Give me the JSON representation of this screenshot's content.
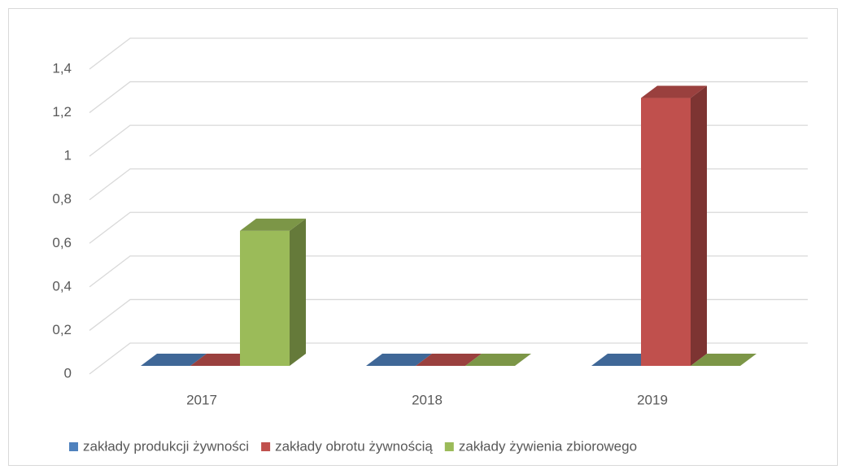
{
  "chart_data": {
    "type": "bar3d",
    "categories": [
      "2017",
      "2018",
      "2019"
    ],
    "series": [
      {
        "name": "zakłady produkcji żywności",
        "color": "#4f81bd",
        "values": [
          0,
          0,
          0
        ]
      },
      {
        "name": "zakłady obrotu żywnością",
        "color": "#c0504d",
        "values": [
          0,
          0,
          1.23
        ]
      },
      {
        "name": "zakłady żywienia zbiorowego",
        "color": "#9bbb59",
        "values": [
          0.62,
          0,
          0
        ]
      }
    ],
    "ylim": [
      0,
      1.4
    ],
    "yticks": [
      0,
      {
        "value": 0.2,
        "label": "0,2"
      },
      {
        "value": 0.4,
        "label": "0,4"
      },
      {
        "value": 0.6,
        "label": "0,6"
      },
      {
        "value": 0.8,
        "label": "0,8"
      },
      {
        "value": 1,
        "label": "1"
      },
      {
        "value": 1.2,
        "label": "1,2"
      },
      {
        "value": 1.4,
        "label": "1,4"
      }
    ],
    "grid": true,
    "legend": "bottom"
  }
}
